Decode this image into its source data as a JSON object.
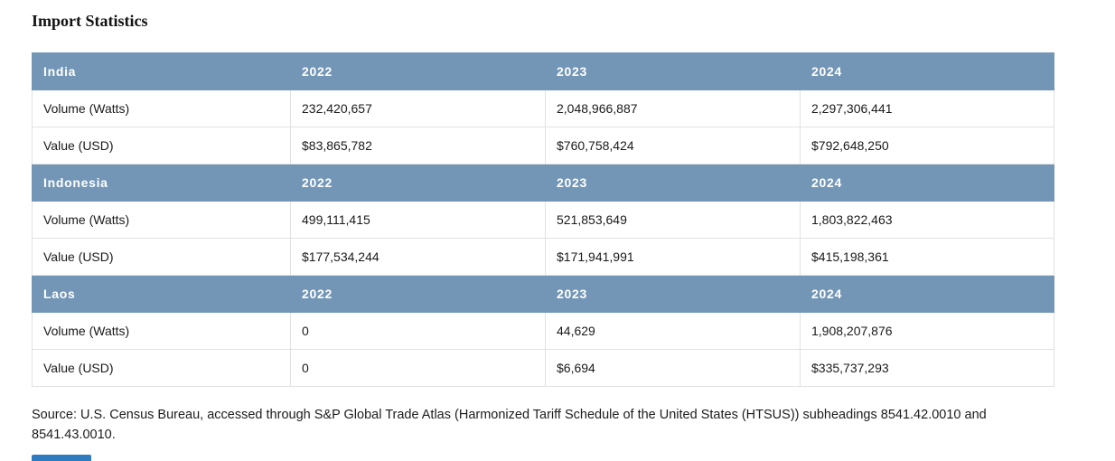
{
  "page": {
    "title": "Import Statistics",
    "source": "Source: U.S. Census Bureau, accessed through S&P Global Trade Atlas (Harmonized Tariff Schedule of the United States (HTSUS)) subheadings 8541.42.0010 and 8541.43.0010."
  },
  "colors": {
    "header_bg": "#7396b7",
    "header_text": "#ffffff",
    "row_border": "#e1e1e1",
    "partial_bar_blue": "#2e7bc0"
  },
  "table": {
    "years": [
      "2022",
      "2023",
      "2024"
    ],
    "row_labels": {
      "volume": "Volume (Watts)",
      "value": "Value (USD)"
    },
    "sections": [
      {
        "country": "India",
        "volume": [
          "232,420,657",
          "2,048,966,887",
          "2,297,306,441"
        ],
        "value": [
          "$83,865,782",
          "$760,758,424",
          "$792,648,250"
        ]
      },
      {
        "country": "Indonesia",
        "volume": [
          "499,111,415",
          "521,853,649",
          "1,803,822,463"
        ],
        "value": [
          "$177,534,244",
          "$171,941,991",
          "$415,198,361"
        ]
      },
      {
        "country": "Laos",
        "volume": [
          "0",
          "44,629",
          "1,908,207,876"
        ],
        "value": [
          "0",
          "$6,694",
          "$335,737,293"
        ]
      }
    ]
  }
}
